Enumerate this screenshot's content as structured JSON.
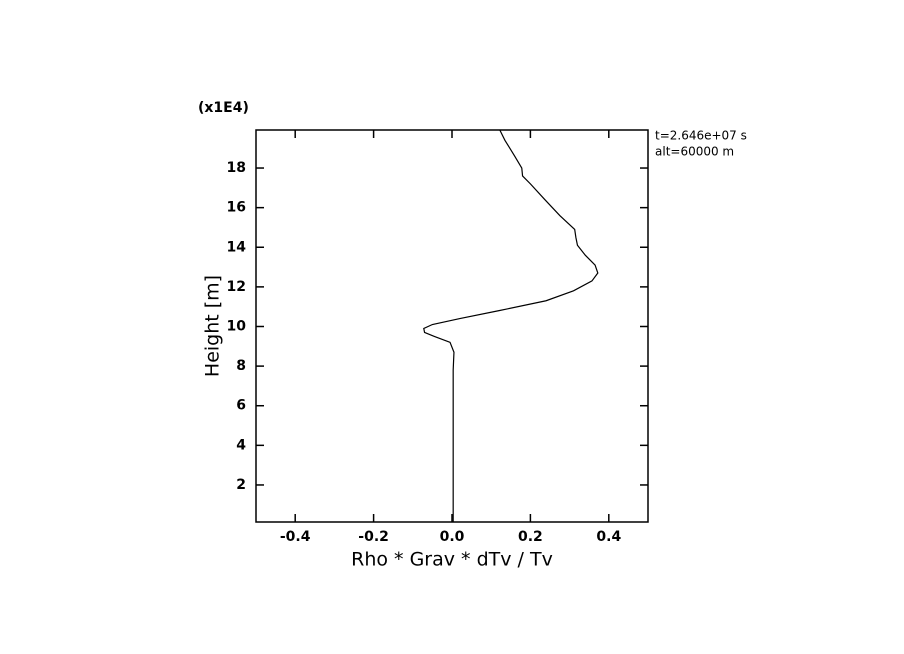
{
  "chart_data": {
    "type": "line",
    "xlabel": "Rho * Grav * dTv / Tv",
    "ylabel": "Height [m]",
    "y_multiplier": "(x1E4)",
    "annotations": [
      "t=2.646e+07 s",
      "alt=60000 m"
    ],
    "color": "#000000",
    "xlim": [
      -0.5,
      0.5
    ],
    "ylim": [
      0.13,
      19.92
    ],
    "xticks": [
      {
        "value": -0.4,
        "label": "-0.4"
      },
      {
        "value": -0.2,
        "label": "-0.2"
      },
      {
        "value": 0,
        "label": "0.0"
      },
      {
        "value": 0.2,
        "label": "0.2"
      },
      {
        "value": 0.4,
        "label": "0.4"
      }
    ],
    "yticks": [
      2,
      4,
      6,
      8,
      10,
      12,
      14,
      16,
      18
    ],
    "x": [
      0.003,
      0.003,
      0.005,
      -0.005,
      -0.045,
      -0.07,
      -0.072,
      -0.05,
      0.02,
      0.12,
      0.24,
      0.31,
      0.357,
      0.372,
      0.365,
      0.34,
      0.32,
      0.316,
      0.313,
      0.275,
      0.237,
      0.2,
      0.18,
      0.178,
      0.16,
      0.135,
      0.122
    ],
    "y": [
      0.13,
      7.8,
      8.7,
      9.2,
      9.5,
      9.7,
      9.9,
      10.1,
      10.4,
      10.8,
      11.3,
      11.8,
      12.3,
      12.7,
      13.1,
      13.6,
      14.1,
      14.5,
      14.9,
      15.6,
      16.4,
      17.2,
      17.6,
      18.0,
      18.6,
      19.4,
      19.92
    ]
  }
}
